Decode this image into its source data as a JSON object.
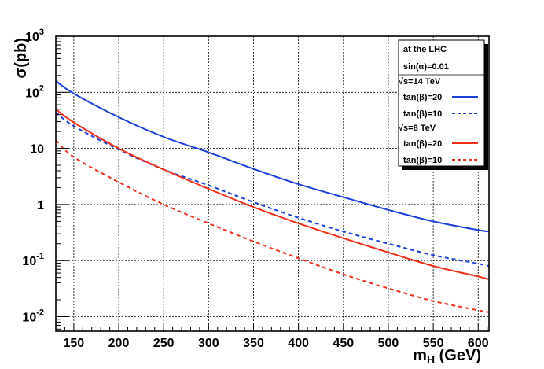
{
  "chart_data": {
    "type": "line",
    "title": "",
    "xlabel": "m_H (GeV)",
    "ylabel": "σ(pb)",
    "y_scale": "log",
    "xlim": [
      130,
      612
    ],
    "ylim": [
      0.0055,
      1000
    ],
    "grid": true,
    "legend_position": "top-right",
    "x_ticks": [
      150,
      200,
      250,
      300,
      350,
      400,
      450,
      500,
      550,
      600
    ],
    "y_ticks": [
      {
        "value": 0.01,
        "base": "10",
        "exp": "-2"
      },
      {
        "value": 0.1,
        "base": "10",
        "exp": "-1"
      },
      {
        "value": 1,
        "base": "1",
        "exp": ""
      },
      {
        "value": 10,
        "base": "10",
        "exp": ""
      },
      {
        "value": 100,
        "base": "10",
        "exp": "2"
      },
      {
        "value": 1000,
        "base": "10",
        "exp": "3"
      }
    ],
    "x": [
      130,
      150,
      200,
      250,
      300,
      350,
      400,
      450,
      500,
      550,
      600,
      612
    ],
    "series": [
      {
        "name": "tan(β)=20",
        "energy": "√s=14 TeV",
        "color": "#1a3fdb",
        "dash": "solid",
        "values": [
          160,
          95,
          36,
          16,
          8.5,
          4.3,
          2.3,
          1.35,
          0.8,
          0.5,
          0.35,
          0.33
        ]
      },
      {
        "name": "tan(β)=10",
        "energy": "√s=14 TeV",
        "color": "#1a3fdb",
        "dash": "dashed",
        "values": [
          44,
          25,
          9.5,
          4.2,
          2.2,
          1.1,
          0.58,
          0.33,
          0.2,
          0.125,
          0.088,
          0.08
        ]
      },
      {
        "name": "tan(β)=20",
        "energy": "√s=8 TeV",
        "color": "#f0301a",
        "dash": "solid",
        "values": [
          50,
          29,
          10,
          4.2,
          1.9,
          0.9,
          0.46,
          0.25,
          0.14,
          0.08,
          0.052,
          0.046
        ]
      },
      {
        "name": "tan(β)=10",
        "energy": "√s=8 TeV",
        "color": "#f0301a",
        "dash": "dashed",
        "values": [
          14,
          7,
          2.5,
          1.0,
          0.46,
          0.22,
          0.11,
          0.057,
          0.032,
          0.019,
          0.013,
          0.012
        ]
      }
    ],
    "legend": {
      "header1": "at the LHC",
      "header2": "sin(α)=0.01",
      "group1": "√s=14 TeV",
      "group2": "√s=8 TeV",
      "entries": [
        "tan(β)=20",
        "tan(β)=10",
        "tan(β)=20",
        "tan(β)=10"
      ]
    }
  }
}
